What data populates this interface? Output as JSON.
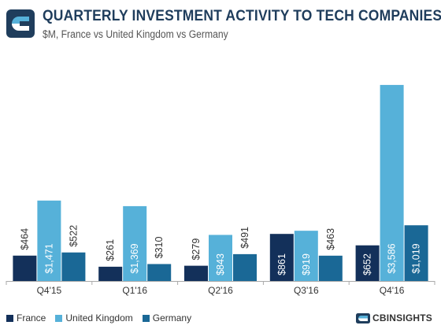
{
  "header": {
    "title": "QUARTERLY INVESTMENT ACTIVITY TO TECH COMPANIES",
    "subtitle": "$M, France vs United Kingdom vs Germany"
  },
  "brand": {
    "name": "CBINSIGHTS"
  },
  "icons": {
    "logo": "cb-insights-logo-icon"
  },
  "colors": {
    "france": "#13305a",
    "uk": "#56b1d9",
    "germany": "#1a6896",
    "axis": "#aaaaaa"
  },
  "chart_data": {
    "type": "bar",
    "title": "QUARTERLY INVESTMENT ACTIVITY TO TECH COMPANIES",
    "subtitle": "$M, France vs United Kingdom vs Germany",
    "categories": [
      "Q4'15",
      "Q1'16",
      "Q2'16",
      "Q3'16",
      "Q4'16"
    ],
    "series": [
      {
        "name": "France",
        "values": [
          464,
          261,
          279,
          861,
          652
        ],
        "labels": [
          "$464",
          "$261",
          "$279",
          "$861",
          "$652"
        ]
      },
      {
        "name": "United Kingdom",
        "values": [
          1471,
          1369,
          843,
          919,
          3586
        ],
        "labels": [
          "$1,471",
          "$1,369",
          "$843",
          "$919",
          "$3,586"
        ]
      },
      {
        "name": "Germany",
        "values": [
          522,
          310,
          491,
          463,
          1019
        ],
        "labels": [
          "$522",
          "$310",
          "$491",
          "$463",
          "$1,019"
        ]
      }
    ],
    "ylim": [
      0,
      3700
    ],
    "grid": false,
    "legend_position": "bottom-left"
  }
}
